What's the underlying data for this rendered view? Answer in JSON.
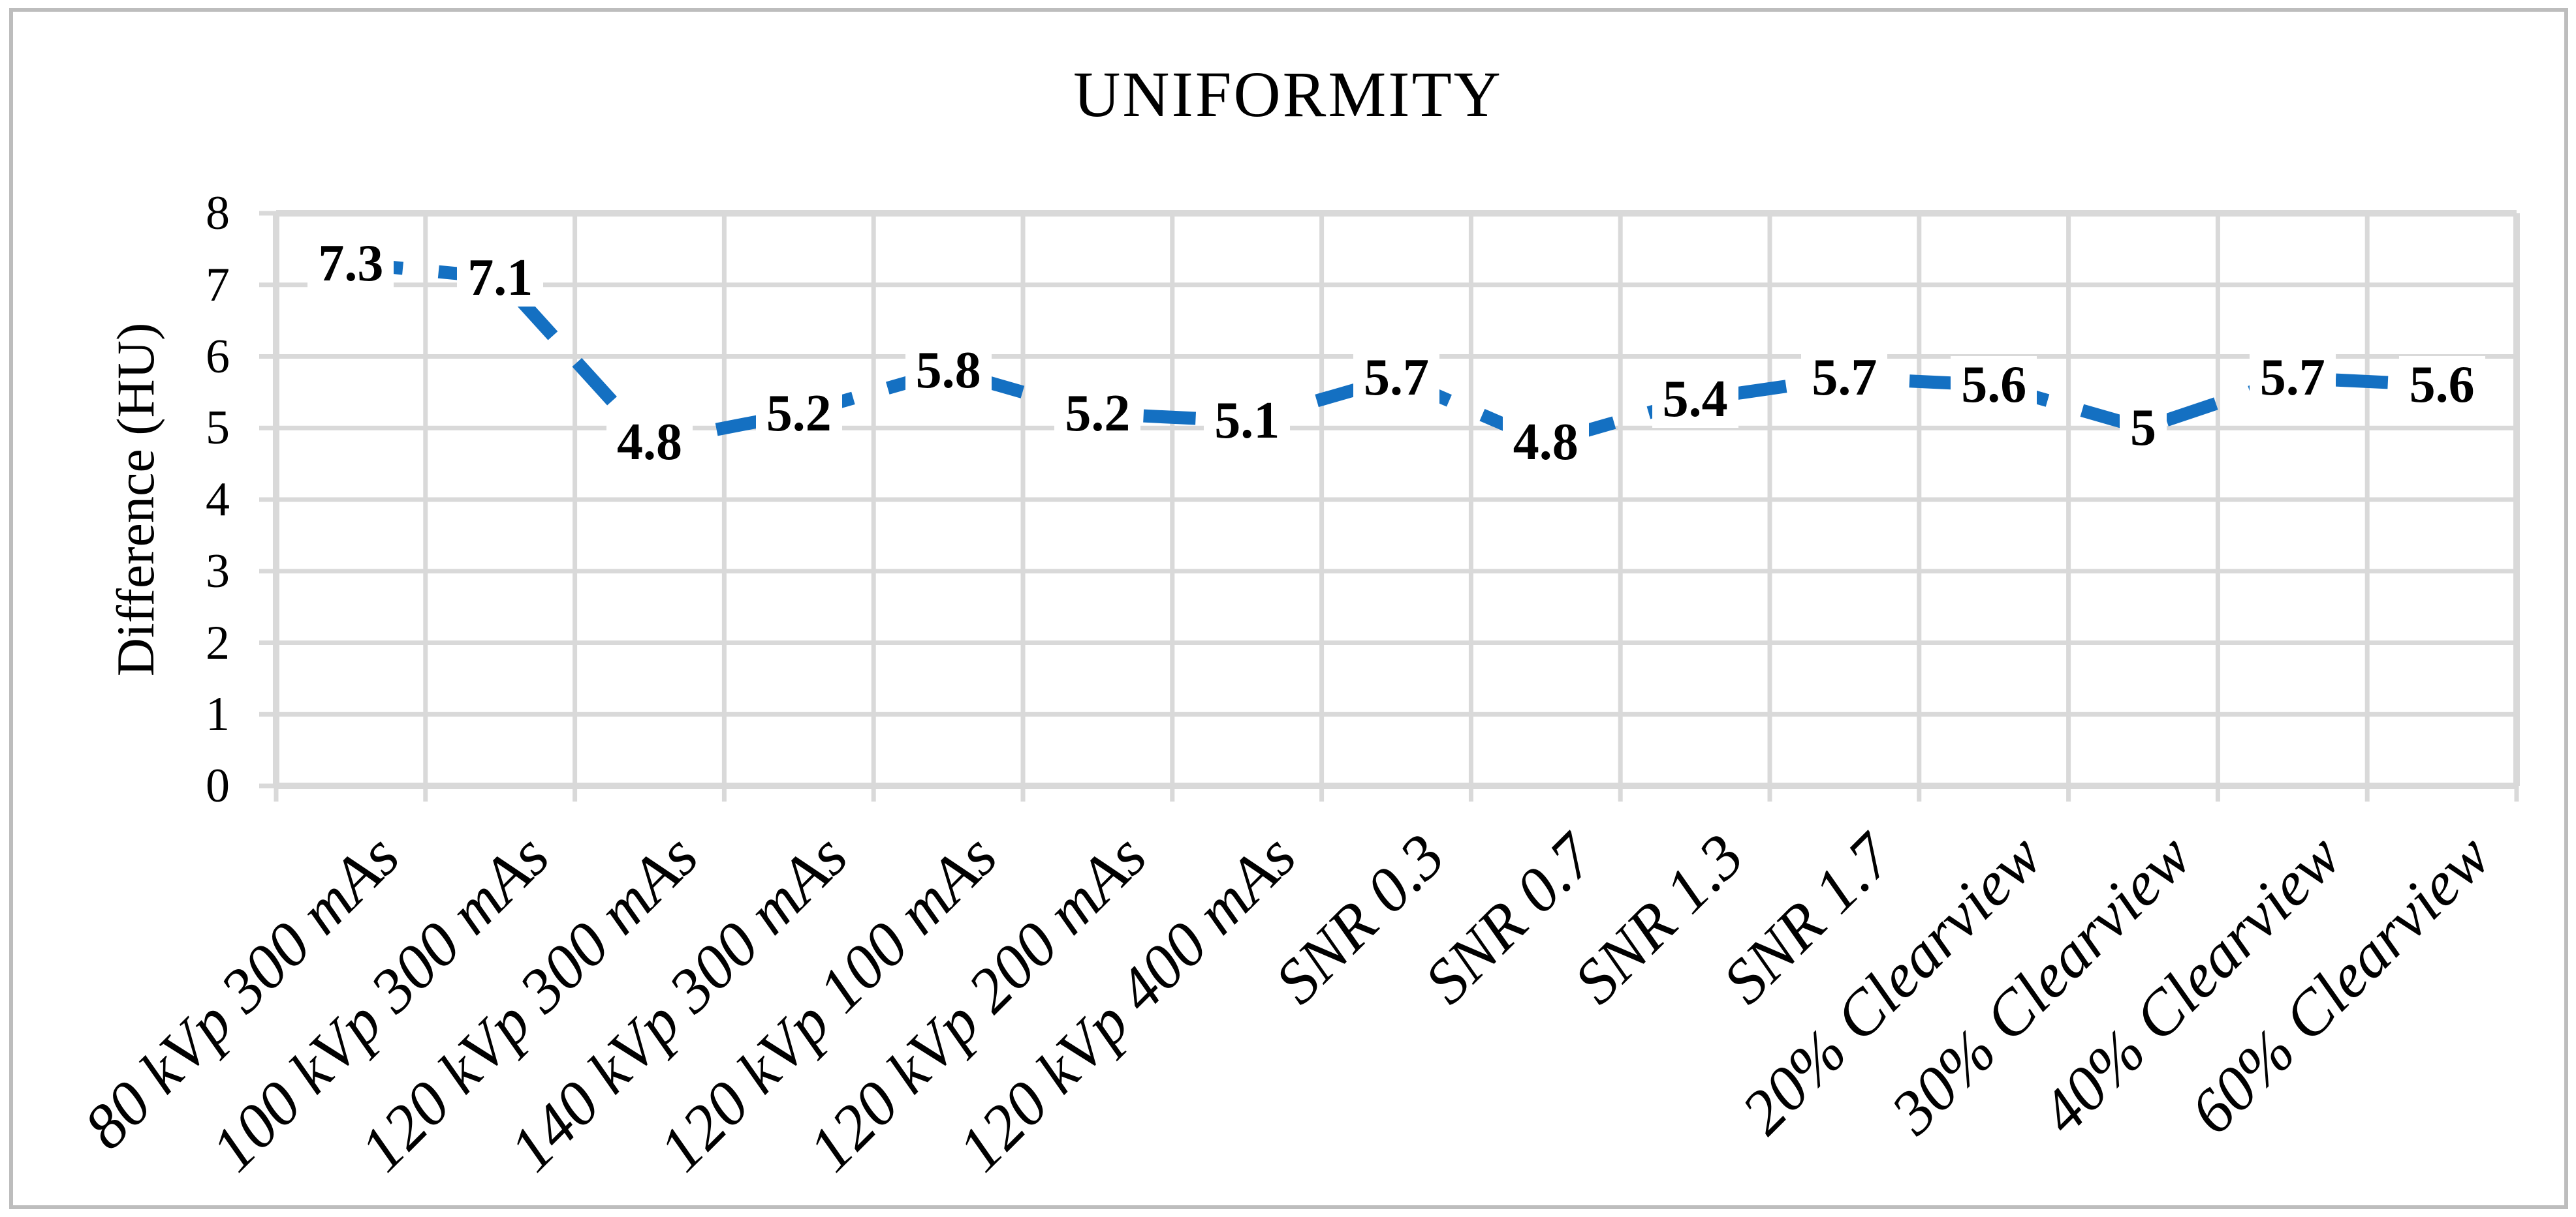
{
  "chart_data": {
    "type": "line",
    "title": "UNIFORMITY",
    "xlabel": "",
    "ylabel": "Difference (HU)",
    "categories": [
      "80 kVp 300 mAs",
      "100 kVp 300 mAs",
      "120 kVp 300 mAs",
      "140 kVp 300 mAs",
      "120 kVp 100 mAs",
      "120 kVp 200 mAs",
      "120 kVp 400 mAs",
      "SNR 0.3",
      "SNR 0.7",
      "SNR 1.3",
      "SNR 1.7",
      "20% Clearview",
      "30% Clearview",
      "40% Clearview",
      "60% Clearview"
    ],
    "values": [
      7.3,
      7.1,
      4.8,
      5.2,
      5.8,
      5.2,
      5.1,
      5.7,
      4.8,
      5.4,
      5.7,
      5.6,
      5,
      5.7,
      5.6
    ],
    "data_labels": [
      "7.3",
      "7.1",
      "4.8",
      "5.2",
      "5.8",
      "5.2",
      "5.1",
      "5.7",
      "4.8",
      "5.4",
      "5.7",
      "5.6",
      "5",
      "5.7",
      "5.6"
    ],
    "yticks": [
      0,
      1,
      2,
      3,
      4,
      5,
      6,
      7,
      8
    ],
    "ylim": [
      0,
      8
    ],
    "grid": true,
    "legend": false,
    "line_style": "dashed",
    "series_name": "Difference (HU)",
    "colors": {
      "line": "#1470C2",
      "gridline": "#d9d9d9",
      "plot_frame": "#d9d9d9",
      "figure_border": "#bdbdbd",
      "text": "#000000",
      "label_background": "#ffffff"
    }
  }
}
